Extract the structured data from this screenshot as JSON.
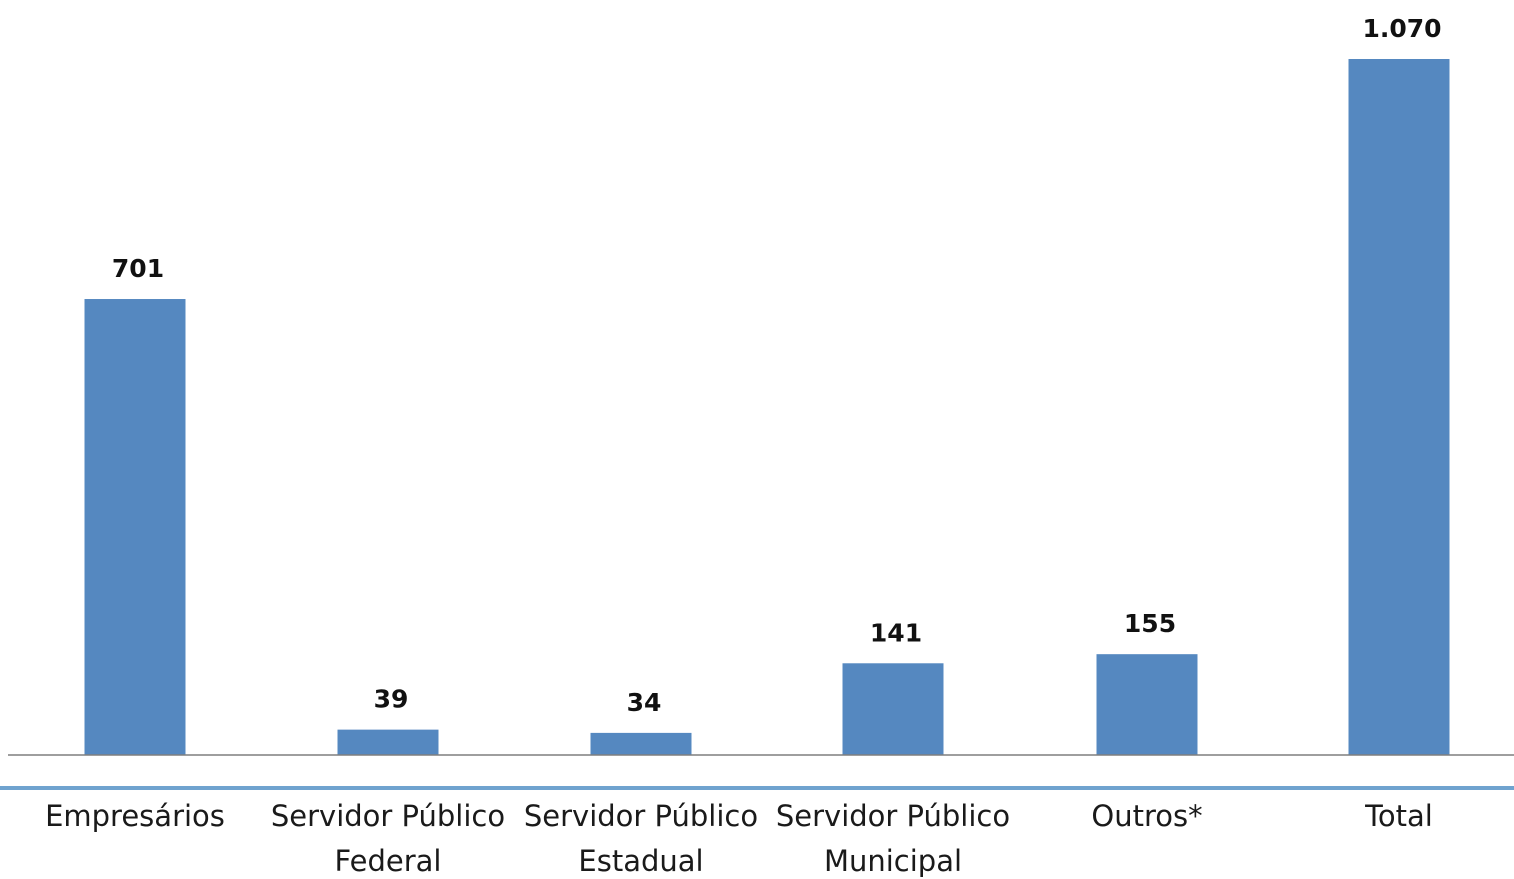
{
  "chart_data": {
    "type": "bar",
    "categories": [
      [
        "Empresários"
      ],
      [
        "Servidor Público",
        "Federal"
      ],
      [
        "Servidor Público",
        "Estadual"
      ],
      [
        "Servidor Público",
        "Municipal"
      ],
      [
        "Outros*"
      ],
      [
        "Total"
      ]
    ],
    "values": [
      701,
      39,
      34,
      141,
      155,
      1070
    ],
    "value_labels": [
      "701",
      "39",
      "34",
      "141",
      "155",
      "1.070"
    ],
    "title": "",
    "xlabel": "",
    "ylabel": "",
    "ylim": [
      0,
      1070
    ],
    "grid": false,
    "legend": "none",
    "colors": {
      "bar": "#5588c0",
      "axis": "#7f7f7f",
      "separator": "#6fa3cf"
    }
  }
}
